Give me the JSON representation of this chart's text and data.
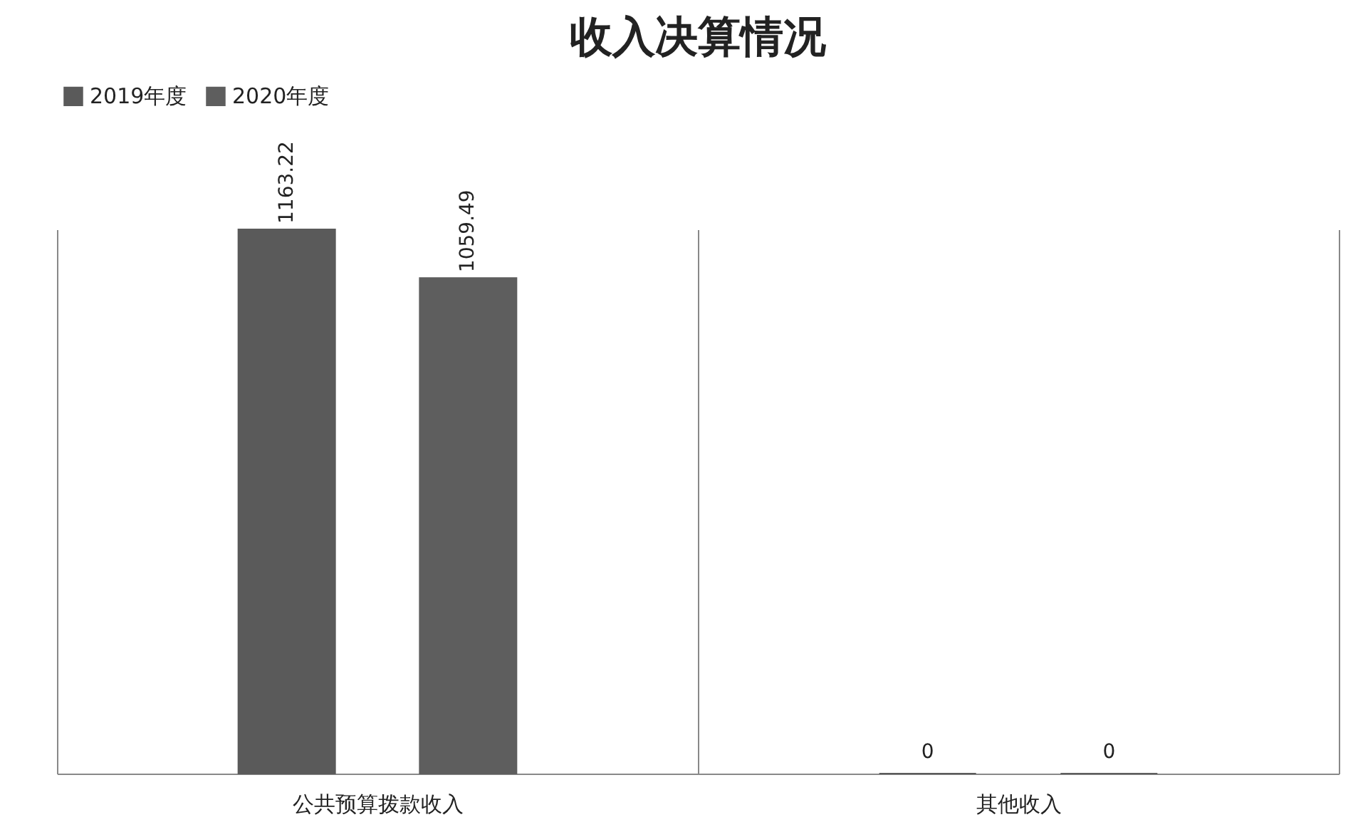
{
  "chart_data": {
    "type": "bar",
    "title": "收入决算情况",
    "categories": [
      "公共预算拨款收入",
      "其他收入"
    ],
    "series": [
      {
        "name": "2019年度",
        "color": "#5a5a5a",
        "values": [
          1163.22,
          0
        ]
      },
      {
        "name": "2020年度",
        "color": "#5e5e5e",
        "values": [
          1059.49,
          0
        ]
      }
    ],
    "data_labels": true,
    "legend": "top",
    "grid": "x",
    "tick_labels": "x"
  }
}
